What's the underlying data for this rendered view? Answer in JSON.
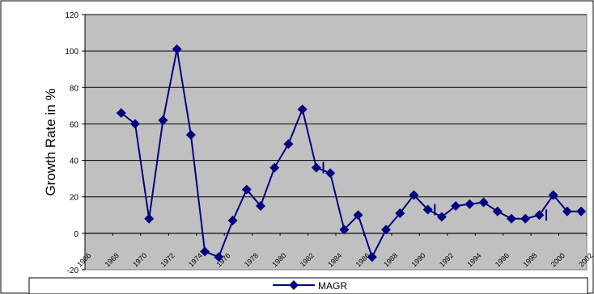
{
  "chart_data": {
    "type": "line",
    "ylabel": "Growth Rate in %",
    "xlabel": "",
    "ylim": [
      -20,
      120
    ],
    "yticks": [
      -20,
      0,
      20,
      40,
      60,
      80,
      100,
      120
    ],
    "xlim": [
      1966,
      2002
    ],
    "xticks": [
      "1966",
      "1968",
      "1970",
      "1972",
      "1974",
      "1976",
      "1978",
      "1980",
      "1982",
      "1984",
      "1986",
      "1988",
      "1990",
      "1992",
      "1994",
      "1996",
      "1998",
      "2000",
      "2002"
    ],
    "grid": true,
    "plot_background": "#c0c0c0",
    "series": [
      {
        "name": "MAGR",
        "color": "#000080",
        "marker": "diamond",
        "x": [
          1968.6,
          1969.6,
          1970.6,
          1971.6,
          1972.6,
          1973.6,
          1974.6,
          1975.6,
          1976.6,
          1977.6,
          1978.6,
          1979.6,
          1980.6,
          1981.6,
          1982.6,
          1983.6,
          1984.6,
          1985.6,
          1986.6,
          1987.6,
          1988.6,
          1989.6,
          1990.6,
          1991.6,
          1992.6,
          1993.6,
          1994.6,
          1995.6,
          1996.6,
          1997.6,
          1998.6,
          1999.6,
          2000.6,
          2001.6
        ],
        "values": [
          66,
          60,
          8,
          62,
          101,
          54,
          -10,
          -13,
          7,
          24,
          15,
          36,
          49,
          68,
          36,
          33,
          2,
          10,
          -13,
          2,
          11,
          21,
          13,
          9,
          15,
          16,
          17,
          12,
          8,
          8,
          10,
          21,
          12,
          12
        ],
        "gap_ticks_x": [
          1982.6,
          1990.6,
          1998.6
        ]
      }
    ],
    "legend": {
      "position": "bottom",
      "entries": [
        "MAGR"
      ]
    }
  }
}
